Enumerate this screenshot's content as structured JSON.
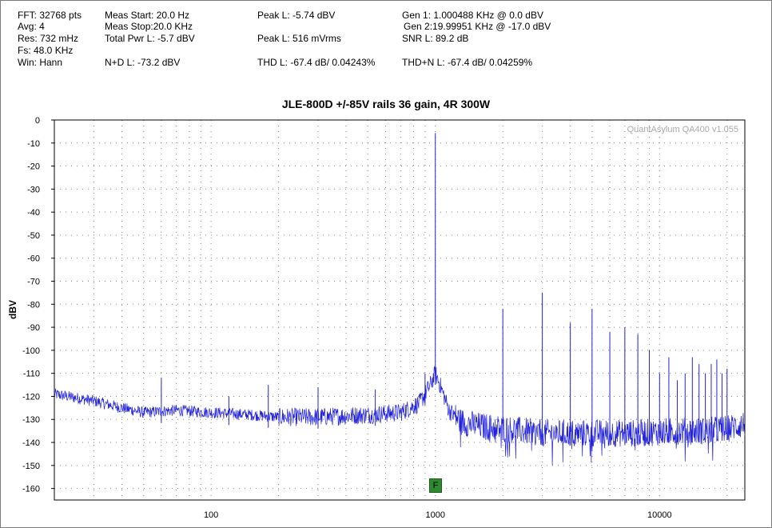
{
  "stats": {
    "fft": "FFT: 32768 pts",
    "avg": "Avg: 4",
    "res": "Res: 732 mHz",
    "fs": "Fs: 48.0 KHz",
    "win": "Win: Hann",
    "meas_start": "Meas Start: 20.0 Hz",
    "meas_stop": "Meas Stop:20.0 KHz",
    "total_pwr": "Total Pwr L: -5.7 dBV",
    "nd": "N+D L: -73.2 dBV",
    "peak_dbv": "Peak L: -5.74 dBV",
    "peak_rms": "Peak L: 516 mVrms",
    "thd": "THD L: -67.4 dB/ 0.04243%",
    "gen1": "Gen 1: 1.000488 KHz @ 0.0  dBV",
    "gen2": "Gen 2:19.99951 KHz @ -17.0  dBV",
    "snr": "SNR L: 89.2 dB",
    "thdn": "THD+N L: -67.4 dB/ 0.04259%"
  },
  "watermark": "QuantAsylum QA400 v1.055",
  "marker_label": "F",
  "colors": {
    "trace": "#2222dd",
    "grid": "#808080",
    "marker": "#2f8a2f"
  },
  "chart_data": {
    "type": "line",
    "title": "JLE-800D +/-85V rails 36 gain, 4R 300W",
    "xlabel": "",
    "ylabel": "dBV",
    "x_scale": "log",
    "xlim": [
      20,
      24000
    ],
    "ylim": [
      -165,
      0
    ],
    "x_ticks": [
      100,
      1000,
      10000
    ],
    "y_ticks": [
      0,
      -10,
      -20,
      -30,
      -40,
      -50,
      -60,
      -70,
      -80,
      -90,
      -100,
      -110,
      -120,
      -130,
      -140,
      -150,
      -160
    ],
    "grid": true,
    "noise_floor": [
      [
        20,
        -119
      ],
      [
        30,
        -122
      ],
      [
        40,
        -125
      ],
      [
        50,
        -127
      ],
      [
        70,
        -126
      ],
      [
        100,
        -127
      ],
      [
        150,
        -128
      ],
      [
        200,
        -129
      ],
      [
        300,
        -129
      ],
      [
        500,
        -128
      ],
      [
        700,
        -127
      ],
      [
        850,
        -123
      ],
      [
        950,
        -115
      ],
      [
        1000,
        -110
      ],
      [
        1050,
        -115
      ],
      [
        1150,
        -126
      ],
      [
        1300,
        -131
      ],
      [
        1600,
        -133
      ],
      [
        2000,
        -134
      ],
      [
        3000,
        -136
      ],
      [
        5000,
        -136
      ],
      [
        8000,
        -136
      ],
      [
        12000,
        -135
      ],
      [
        16000,
        -135
      ],
      [
        20000,
        -134
      ],
      [
        24000,
        -132
      ]
    ],
    "peaks": [
      {
        "x": 60,
        "y": -112
      },
      {
        "x": 120,
        "y": -120
      },
      {
        "x": 180,
        "y": -115
      },
      {
        "x": 300,
        "y": -116
      },
      {
        "x": 540,
        "y": -117
      },
      {
        "x": 900,
        "y": -110
      },
      {
        "x": 1000,
        "y": -5.7
      },
      {
        "x": 2000,
        "y": -82
      },
      {
        "x": 3000,
        "y": -75
      },
      {
        "x": 4000,
        "y": -88
      },
      {
        "x": 5000,
        "y": -82
      },
      {
        "x": 6000,
        "y": -92
      },
      {
        "x": 7000,
        "y": -90
      },
      {
        "x": 8000,
        "y": -93
      },
      {
        "x": 9000,
        "y": -100
      },
      {
        "x": 10000,
        "y": -110
      },
      {
        "x": 11000,
        "y": -103
      },
      {
        "x": 12000,
        "y": -113
      },
      {
        "x": 13000,
        "y": -110
      },
      {
        "x": 14000,
        "y": -103
      },
      {
        "x": 15000,
        "y": -106
      },
      {
        "x": 16000,
        "y": -110
      },
      {
        "x": 17000,
        "y": -106
      },
      {
        "x": 18000,
        "y": -104
      },
      {
        "x": 19000,
        "y": -110
      },
      {
        "x": 20000,
        "y": -108
      }
    ]
  }
}
